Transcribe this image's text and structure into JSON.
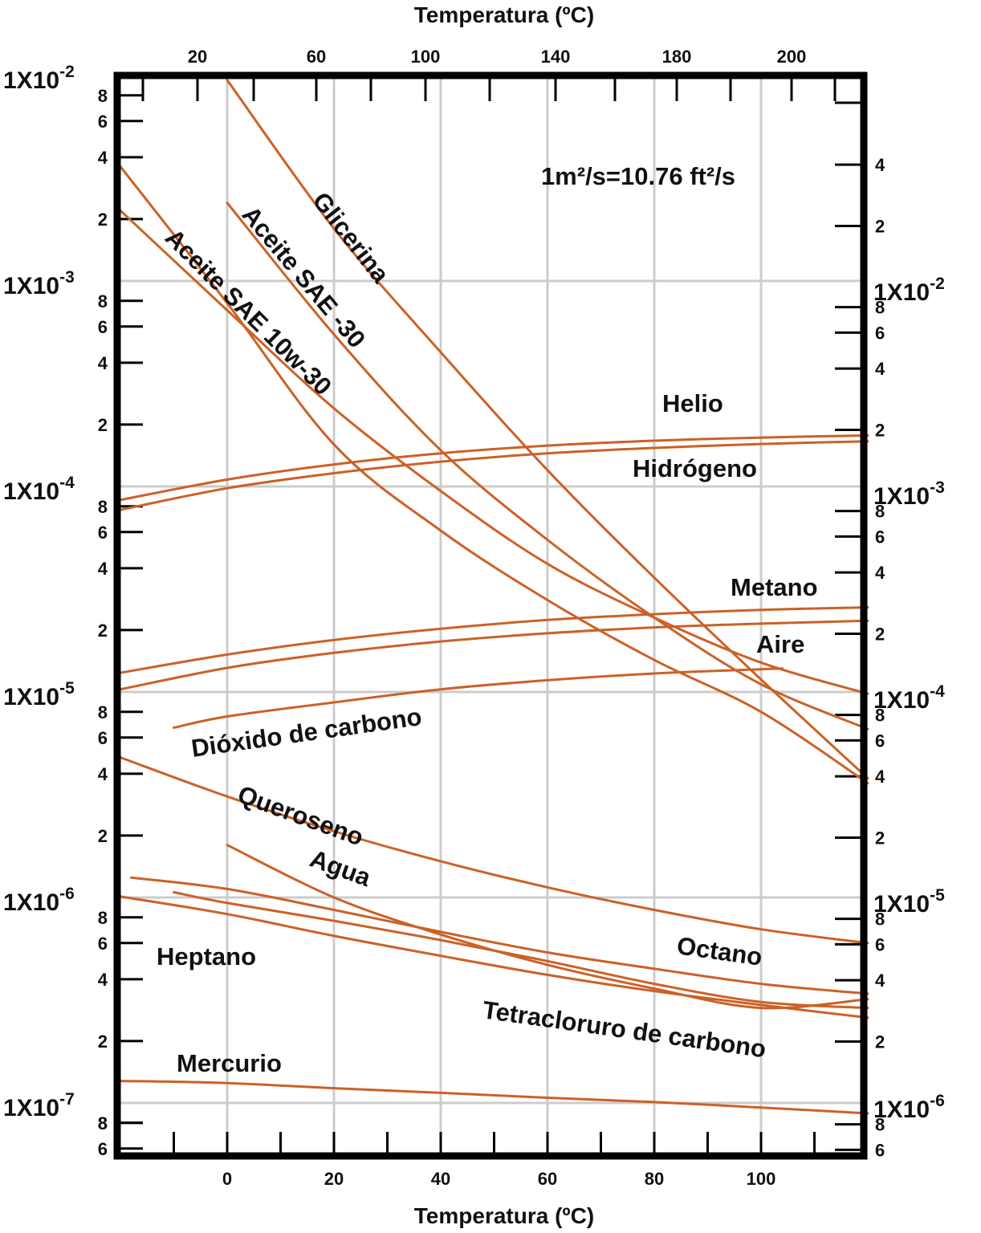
{
  "chart_data": {
    "type": "line",
    "axes": {
      "x_bottom": {
        "label": "Temperatura (ºC)",
        "range": [
          -20,
          120
        ],
        "ticks": [
          0,
          20,
          40,
          60,
          80,
          100
        ]
      },
      "x_top": {
        "label": "Temperatura (ºC)",
        "ticks": [
          20,
          60,
          100,
          140,
          180,
          200
        ]
      },
      "y_left": {
        "scale": "log",
        "unit": "m²/s",
        "range": [
          7e-08,
          0.01
        ],
        "decade_labels": [
          {
            "base": "1X10",
            "exp": "-2"
          },
          {
            "base": "1X10",
            "exp": "-3"
          },
          {
            "base": "1X10",
            "exp": "-4"
          },
          {
            "base": "1X10",
            "exp": "-5"
          },
          {
            "base": "1X10",
            "exp": "-6"
          },
          {
            "base": "1X10",
            "exp": "-7"
          }
        ],
        "minor_labels": [
          "8",
          "6",
          "4",
          "2"
        ]
      },
      "y_right": {
        "scale": "log",
        "unit": "ft²/s",
        "decade_labels": [
          {
            "base": "1X10",
            "exp": "-2"
          },
          {
            "base": "1X10",
            "exp": "-3"
          },
          {
            "base": "1X10",
            "exp": "-4"
          },
          {
            "base": "1X10",
            "exp": "-5"
          },
          {
            "base": "1X10",
            "exp": "-6"
          }
        ],
        "minor_labels": [
          "8",
          "6",
          "4",
          "2"
        ]
      }
    },
    "grid": true,
    "conversion_note": "1m²/s=10.76 ft²/s",
    "series": [
      {
        "name": "Glicerina",
        "points": [
          [
            0,
            0.0095
          ],
          [
            20,
            0.0018
          ],
          [
            40,
            0.00045
          ],
          [
            60,
            0.00012
          ],
          [
            80,
            3.6e-05
          ],
          [
            100,
            1.15e-05
          ],
          [
            120,
            3.8e-06
          ]
        ]
      },
      {
        "name": "Aceite SAE -30",
        "points": [
          [
            0,
            0.0024
          ],
          [
            20,
            0.00055
          ],
          [
            40,
            0.00015
          ],
          [
            60,
            5.5e-05
          ],
          [
            80,
            2.3e-05
          ],
          [
            100,
            1.09e-05
          ],
          [
            120,
            6.6e-06
          ]
        ]
      },
      {
        "name": "Aceite SAE 10w-30",
        "points": [
          [
            -20,
            0.0022
          ],
          [
            0,
            0.00072
          ],
          [
            20,
            0.00024
          ],
          [
            40,
            9.5e-05
          ],
          [
            60,
            4.2e-05
          ],
          [
            80,
            2.3e-05
          ],
          [
            100,
            1.39e-05
          ],
          [
            120,
            9.8e-06
          ]
        ]
      },
      {
        "name": "Aceite SAE 10w-30",
        "points": [
          [
            -20,
            0.0036
          ],
          [
            0,
            0.00078
          ],
          [
            20,
            0.00016
          ],
          [
            40,
            6.1e-05
          ],
          [
            60,
            2.8e-05
          ],
          [
            80,
            1.43e-05
          ],
          [
            100,
            8e-06
          ],
          [
            120,
            3.6e-06
          ]
        ]
      },
      {
        "name": "Helio",
        "points": [
          [
            -20,
            8.6e-05
          ],
          [
            0,
            0.000108
          ],
          [
            20,
            0.000128
          ],
          [
            40,
            0.000145
          ],
          [
            60,
            0.000158
          ],
          [
            80,
            0.000167
          ],
          [
            100,
            0.000173
          ],
          [
            120,
            0.000177
          ]
        ]
      },
      {
        "name": "Hidrógeno",
        "points": [
          [
            -20,
            7.7e-05
          ],
          [
            0,
            9.8e-05
          ],
          [
            20,
            0.000116
          ],
          [
            40,
            0.000132
          ],
          [
            60,
            0.000145
          ],
          [
            80,
            0.000154
          ],
          [
            100,
            0.000161
          ],
          [
            120,
            0.000166
          ]
        ]
      },
      {
        "name": "Metano",
        "points": [
          [
            -20,
            1.24e-05
          ],
          [
            0,
            1.52e-05
          ],
          [
            20,
            1.79e-05
          ],
          [
            40,
            2.03e-05
          ],
          [
            60,
            2.24e-05
          ],
          [
            80,
            2.39e-05
          ],
          [
            100,
            2.51e-05
          ],
          [
            120,
            2.58e-05
          ]
        ]
      },
      {
        "name": "Aire",
        "points": [
          [
            -20,
            1.03e-05
          ],
          [
            0,
            1.31e-05
          ],
          [
            20,
            1.55e-05
          ],
          [
            40,
            1.76e-05
          ],
          [
            60,
            1.93e-05
          ],
          [
            80,
            2.06e-05
          ],
          [
            100,
            2.15e-05
          ],
          [
            120,
            2.22e-05
          ]
        ]
      },
      {
        "name": "Dióxido de carbono",
        "points": [
          [
            -10,
            6.7e-06
          ],
          [
            0,
            7.6e-06
          ],
          [
            20,
            8.9e-06
          ],
          [
            40,
            1.03e-05
          ],
          [
            60,
            1.14e-05
          ],
          [
            80,
            1.23e-05
          ],
          [
            100,
            1.29e-05
          ],
          [
            104,
            1.3e-05
          ]
        ]
      },
      {
        "name": "Queroseno",
        "points": [
          [
            -20,
            4.8e-06
          ],
          [
            0,
            3.1e-06
          ],
          [
            20,
            2.1e-06
          ],
          [
            40,
            1.5e-06
          ],
          [
            60,
            1.12e-06
          ],
          [
            80,
            8.7e-07
          ],
          [
            100,
            7e-07
          ],
          [
            120,
            6e-07
          ]
        ]
      },
      {
        "name": "Agua",
        "points": [
          [
            0,
            1.8e-06
          ],
          [
            20,
            1e-06
          ],
          [
            40,
            6.6e-07
          ],
          [
            60,
            4.7e-07
          ],
          [
            80,
            3.6e-07
          ],
          [
            100,
            2.9e-07
          ],
          [
            120,
            3.2e-07
          ]
        ]
      },
      {
        "name": "Octano",
        "points": [
          [
            -18,
            1.25e-06
          ],
          [
            0,
            1.1e-06
          ],
          [
            20,
            8.7e-07
          ],
          [
            40,
            6.8e-07
          ],
          [
            60,
            5.4e-07
          ],
          [
            80,
            4.5e-07
          ],
          [
            100,
            3.8e-07
          ],
          [
            120,
            3.4e-07
          ]
        ]
      },
      {
        "name": "Tetracloruro de carbono",
        "points": [
          [
            -10,
            1.06e-06
          ],
          [
            0,
            9.4e-07
          ],
          [
            20,
            7.7e-07
          ],
          [
            40,
            6.2e-07
          ],
          [
            60,
            4.9e-07
          ],
          [
            80,
            3.8e-07
          ],
          [
            100,
            3.1e-07
          ],
          [
            120,
            2.9e-07
          ]
        ]
      },
      {
        "name": "Heptano",
        "points": [
          [
            -20,
            1.01e-06
          ],
          [
            0,
            8.3e-07
          ],
          [
            20,
            6.5e-07
          ],
          [
            40,
            5.2e-07
          ],
          [
            60,
            4.2e-07
          ],
          [
            80,
            3.5e-07
          ],
          [
            100,
            3e-07
          ],
          [
            120,
            2.6e-07
          ]
        ]
      },
      {
        "name": "Mercurio",
        "points": [
          [
            -20,
            1.28e-07
          ],
          [
            0,
            1.25e-07
          ],
          [
            20,
            1.18e-07
          ],
          [
            40,
            1.12e-07
          ],
          [
            60,
            1.06e-07
          ],
          [
            80,
            1.01e-07
          ],
          [
            100,
            9.5e-08
          ],
          [
            120,
            8.9e-08
          ]
        ]
      }
    ],
    "curve_labels": [
      "Glicerina",
      "Aceite SAE -30",
      "Aceite SAE 10w-30",
      "Helio",
      "Hidrógeno",
      "Metano",
      "Aire",
      "Dióxido de carbono",
      "Queroseno",
      "Agua",
      "Octano",
      "Heptano",
      "Tetracloruro de carbono",
      "Mercurio"
    ],
    "colors": {
      "curve": "#cc6126",
      "frame": "#000000",
      "grid": "#cccccc"
    }
  }
}
